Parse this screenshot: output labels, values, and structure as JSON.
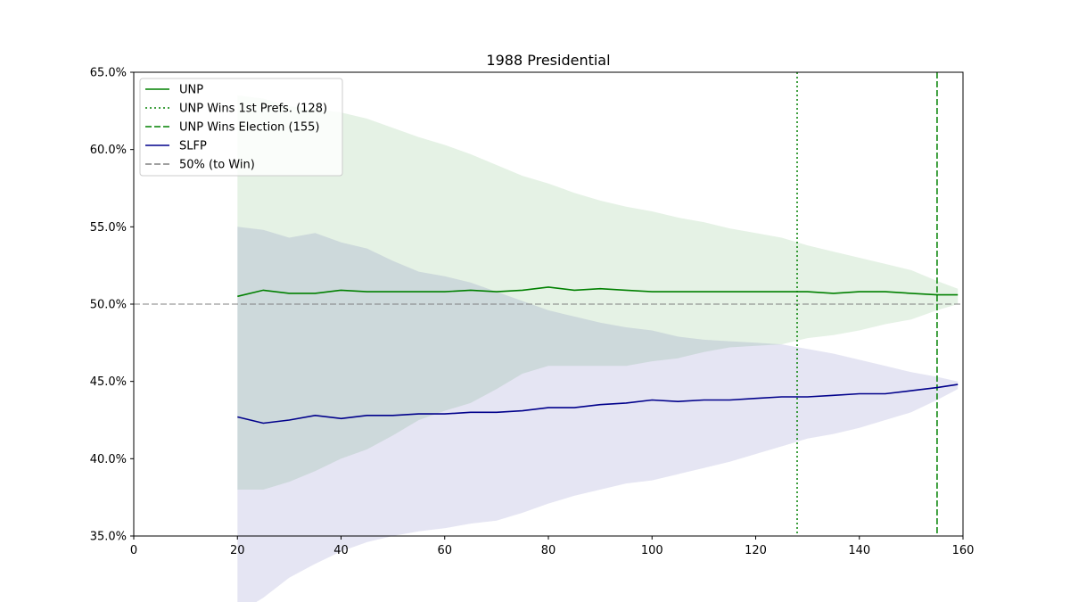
{
  "chart_data": {
    "type": "line",
    "title": "1988 Presidential",
    "xlabel": "",
    "ylabel": "",
    "xlim": [
      0,
      160
    ],
    "ylim": [
      35.0,
      65.0
    ],
    "x_ticks": [
      0,
      20,
      40,
      60,
      80,
      100,
      120,
      140,
      160
    ],
    "x_tick_labels": [
      "0",
      "20",
      "40",
      "60",
      "80",
      "100",
      "120",
      "140",
      "160"
    ],
    "y_ticks": [
      35,
      40,
      45,
      50,
      55,
      60,
      65
    ],
    "y_tick_labels": [
      "35.0%",
      "40.0%",
      "45.0%",
      "50.0%",
      "55.0%",
      "60.0%",
      "65.0%"
    ],
    "grid": false,
    "legend_position": "top-left",
    "x": [
      20,
      25,
      30,
      35,
      40,
      45,
      50,
      55,
      60,
      65,
      70,
      75,
      80,
      85,
      90,
      95,
      100,
      105,
      110,
      115,
      120,
      125,
      130,
      135,
      140,
      145,
      150,
      155,
      159
    ],
    "series": [
      {
        "name": "UNP",
        "color": "#008000",
        "values": [
          50.5,
          50.9,
          50.7,
          50.7,
          50.9,
          50.8,
          50.8,
          50.8,
          50.8,
          50.9,
          50.8,
          50.9,
          51.1,
          50.9,
          51.0,
          50.9,
          50.8,
          50.8,
          50.8,
          50.8,
          50.8,
          50.8,
          50.8,
          50.7,
          50.8,
          50.8,
          50.7,
          50.6,
          50.6
        ],
        "band_upper": [
          63.5,
          63.3,
          62.8,
          62.6,
          62.4,
          62.0,
          61.4,
          60.8,
          60.3,
          59.7,
          59.0,
          58.3,
          57.8,
          57.2,
          56.7,
          56.3,
          56.0,
          55.6,
          55.3,
          54.9,
          54.6,
          54.3,
          53.8,
          53.4,
          53.0,
          52.6,
          52.2,
          51.5,
          51.0
        ],
        "band_lower": [
          38.0,
          38.0,
          38.5,
          39.2,
          40.0,
          40.6,
          41.5,
          42.5,
          43.1,
          43.6,
          44.5,
          45.5,
          46.0,
          46.0,
          46.0,
          46.0,
          46.3,
          46.5,
          46.9,
          47.2,
          47.3,
          47.4,
          47.8,
          48.0,
          48.3,
          48.7,
          49.0,
          49.6,
          50.0
        ]
      },
      {
        "name": "SLFP",
        "color": "#00008b",
        "values": [
          42.7,
          42.3,
          42.5,
          42.8,
          42.6,
          42.8,
          42.8,
          42.9,
          42.9,
          43.0,
          43.0,
          43.1,
          43.3,
          43.3,
          43.5,
          43.6,
          43.8,
          43.7,
          43.8,
          43.8,
          43.9,
          44.0,
          44.0,
          44.1,
          44.2,
          44.2,
          44.4,
          44.6,
          44.8
        ],
        "band_upper": [
          55.0,
          54.8,
          54.3,
          54.6,
          54.0,
          53.6,
          52.8,
          52.1,
          51.8,
          51.4,
          50.8,
          50.2,
          49.6,
          49.2,
          48.8,
          48.5,
          48.3,
          47.9,
          47.7,
          47.6,
          47.5,
          47.4,
          47.1,
          46.8,
          46.4,
          46.0,
          45.6,
          45.3,
          45.0
        ],
        "band_lower": [
          30.0,
          31.0,
          32.3,
          33.2,
          34.0,
          34.6,
          35.0,
          35.3,
          35.5,
          35.8,
          36.0,
          36.5,
          37.1,
          37.6,
          38.0,
          38.4,
          38.6,
          39.0,
          39.4,
          39.8,
          40.3,
          40.8,
          41.3,
          41.6,
          42.0,
          42.5,
          43.0,
          43.8,
          44.5
        ]
      }
    ],
    "vlines": [
      {
        "name": "UNP Wins 1st Prefs. (128)",
        "x": 128,
        "style": "dotted",
        "color": "#008000"
      },
      {
        "name": "UNP Wins Election (155)",
        "x": 155,
        "style": "dashed",
        "color": "#008000"
      }
    ],
    "hlines": [
      {
        "name": "50% (to Win)",
        "y": 50.0,
        "style": "dashed",
        "color": "#808080"
      }
    ],
    "legend": [
      {
        "label": "UNP",
        "style": "solid",
        "color": "#008000"
      },
      {
        "label": "UNP Wins 1st Prefs. (128)",
        "style": "dotted",
        "color": "#008000"
      },
      {
        "label": "UNP Wins Election (155)",
        "style": "dashed",
        "color": "#008000"
      },
      {
        "label": "SLFP",
        "style": "solid",
        "color": "#00008b"
      },
      {
        "label": "50% (to Win)",
        "style": "dashed",
        "color": "#808080"
      }
    ]
  }
}
